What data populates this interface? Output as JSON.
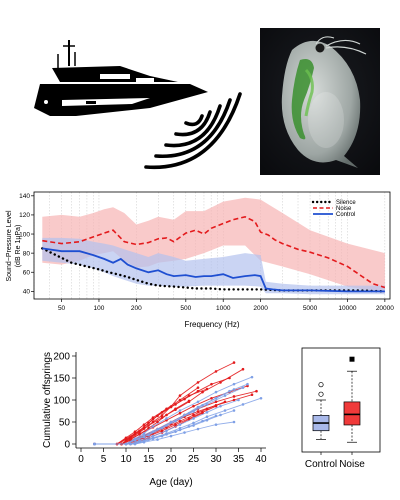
{
  "figure": {
    "boat_icon": "motor-yacht-icon",
    "sound_icon": "sound-waves-icon",
    "photo_subject": "daphnia-photo",
    "colors": {
      "silence": "#000000",
      "noise": "#e31a1c",
      "control": "#1f4fd1",
      "noise_band": "#f6b3b3",
      "control_band": "#b3c2ee"
    }
  },
  "chart_data": [
    {
      "type": "line",
      "xlabel": "Frequency (Hz)",
      "ylabel": "Sound−Pressure Level",
      "ylabel2": "(dB Re 1μPa)",
      "xscale": "log",
      "xlim": [
        30,
        22000
      ],
      "ylim": [
        32,
        144
      ],
      "xticks": [
        50,
        100,
        200,
        500,
        1000,
        2000,
        5000,
        10000,
        20000
      ],
      "xtick_labels": [
        "50",
        "100",
        "200",
        "500",
        "1000",
        "2000",
        "5000",
        "10000",
        "20000"
      ],
      "yticks": [
        40,
        60,
        80,
        100,
        120,
        140
      ],
      "legend": [
        "Silence",
        "Noise",
        "Control"
      ],
      "legend_position": "top-right",
      "series": [
        {
          "name": "Silence",
          "style": "dotted",
          "x": [
            35,
            45,
            60,
            80,
            100,
            120,
            140,
            160,
            180,
            200,
            250,
            300,
            400,
            500,
            600,
            800,
            1000,
            1200,
            1500,
            2000,
            3000,
            5000,
            8000,
            12000,
            20000
          ],
          "y": [
            85,
            78,
            70,
            66,
            63,
            60,
            58,
            56,
            54,
            52,
            48,
            46,
            45,
            44,
            43,
            43,
            42,
            42,
            42,
            42,
            41,
            41,
            41,
            41,
            40
          ]
        },
        {
          "name": "Noise",
          "style": "dashed",
          "x": [
            35,
            50,
            70,
            90,
            110,
            130,
            160,
            200,
            250,
            300,
            350,
            400,
            500,
            600,
            700,
            800,
            1000,
            1200,
            1500,
            1800,
            2000,
            2300,
            2600,
            3000,
            4000,
            5000,
            7000,
            10000,
            13000,
            16000,
            20000
          ],
          "y": [
            93,
            90,
            92,
            97,
            101,
            104,
            92,
            89,
            91,
            95,
            96,
            92,
            101,
            104,
            100,
            106,
            111,
            115,
            118,
            113,
            102,
            99,
            94,
            90,
            84,
            81,
            75,
            66,
            56,
            48,
            44
          ]
        },
        {
          "name": "Control",
          "style": "solid",
          "x": [
            35,
            50,
            70,
            90,
            110,
            130,
            150,
            170,
            200,
            250,
            300,
            350,
            400,
            500,
            600,
            700,
            800,
            1000,
            1200,
            1500,
            1800,
            2000,
            2200,
            2500,
            3000,
            5000,
            10000,
            20000
          ],
          "y": [
            85,
            82,
            82,
            78,
            74,
            70,
            74,
            68,
            64,
            60,
            62,
            58,
            56,
            57,
            55,
            56,
            56,
            58,
            54,
            56,
            57,
            56,
            43,
            42,
            41,
            41,
            40,
            40
          ]
        }
      ],
      "bands": [
        {
          "name": "Noise",
          "x": [
            35,
            50,
            70,
            90,
            110,
            130,
            160,
            200,
            250,
            300,
            400,
            500,
            700,
            1000,
            1500,
            2000,
            3000,
            5000,
            10000,
            20000
          ],
          "low": [
            70,
            68,
            72,
            78,
            80,
            82,
            72,
            65,
            66,
            70,
            72,
            74,
            80,
            88,
            88,
            72,
            66,
            58,
            45,
            38
          ],
          "high": [
            118,
            120,
            118,
            122,
            126,
            128,
            122,
            110,
            114,
            118,
            115,
            124,
            124,
            134,
            138,
            136,
            122,
            104,
            90,
            80
          ]
        },
        {
          "name": "Control",
          "x": [
            35,
            50,
            70,
            90,
            110,
            130,
            160,
            200,
            250,
            300,
            400,
            500,
            700,
            1000,
            1500,
            2000,
            2200,
            3000,
            5000,
            10000,
            20000
          ],
          "low": [
            72,
            70,
            68,
            64,
            60,
            56,
            52,
            48,
            46,
            46,
            45,
            45,
            46,
            46,
            46,
            45,
            38,
            38,
            37,
            37,
            37
          ],
          "high": [
            96,
            96,
            95,
            92,
            90,
            88,
            84,
            80,
            76,
            80,
            76,
            72,
            74,
            76,
            80,
            78,
            50,
            48,
            46,
            46,
            46
          ]
        }
      ]
    },
    {
      "type": "line",
      "xlabel": "Age (day)",
      "ylabel": "Cumulative offsprings",
      "xlim": [
        0,
        40
      ],
      "ylim": [
        0,
        200
      ],
      "xticks": [
        0,
        5,
        10,
        15,
        20,
        25,
        30,
        35,
        40
      ],
      "yticks": [
        0,
        50,
        100,
        150,
        200
      ],
      "series": [
        {
          "group": "Noise",
          "x": [
            3,
            8,
            10,
            12,
            14,
            16,
            18,
            20,
            22,
            26,
            30,
            34
          ],
          "y": [
            0,
            0,
            10,
            22,
            35,
            50,
            65,
            85,
            110,
            140,
            165,
            185
          ]
        },
        {
          "group": "Noise",
          "x": [
            3,
            9,
            11,
            13,
            15,
            18,
            21,
            24,
            27,
            31,
            36
          ],
          "y": [
            0,
            0,
            14,
            26,
            42,
            60,
            78,
            96,
            118,
            140,
            170
          ]
        },
        {
          "group": "Noise",
          "x": [
            3,
            8,
            10,
            12,
            14,
            16,
            18,
            21,
            24,
            28
          ],
          "y": [
            0,
            0,
            12,
            24,
            38,
            56,
            72,
            90,
            110,
            125
          ]
        },
        {
          "group": "Noise",
          "x": [
            3,
            9,
            11,
            14,
            17,
            20,
            23,
            26,
            30,
            34,
            39
          ],
          "y": [
            0,
            0,
            8,
            20,
            34,
            50,
            66,
            80,
            96,
            108,
            120
          ]
        },
        {
          "group": "Noise",
          "x": [
            3,
            10,
            12,
            14,
            17,
            20,
            23,
            26,
            30,
            34,
            38
          ],
          "y": [
            0,
            0,
            10,
            18,
            32,
            46,
            62,
            74,
            88,
            100,
            112
          ]
        },
        {
          "group": "Noise",
          "x": [
            3,
            9,
            11,
            13,
            15,
            17,
            20,
            23,
            26,
            29,
            33
          ],
          "y": [
            0,
            0,
            16,
            30,
            48,
            64,
            84,
            102,
            120,
            136,
            150
          ]
        },
        {
          "group": "Noise",
          "x": [
            3,
            10,
            12,
            15,
            18,
            21,
            24,
            27,
            30
          ],
          "y": [
            0,
            0,
            8,
            18,
            30,
            44,
            58,
            72,
            86
          ]
        },
        {
          "group": "Noise",
          "x": [
            3,
            8,
            10,
            12,
            14,
            16,
            19,
            22,
            26
          ],
          "y": [
            0,
            0,
            14,
            28,
            44,
            60,
            80,
            100,
            128
          ]
        },
        {
          "group": "Noise",
          "x": [
            3,
            10,
            12,
            14,
            16,
            19,
            22,
            25,
            28,
            32
          ],
          "y": [
            0,
            0,
            6,
            14,
            24,
            38,
            52,
            66,
            80,
            96
          ]
        },
        {
          "group": "Noise",
          "x": [
            3,
            9,
            11,
            13,
            16,
            19,
            22,
            25,
            29,
            33,
            37
          ],
          "y": [
            0,
            0,
            12,
            22,
            38,
            54,
            70,
            86,
            104,
            118,
            132
          ]
        },
        {
          "group": "Noise",
          "x": [
            3,
            11,
            13,
            15,
            18,
            21,
            24,
            27
          ],
          "y": [
            0,
            0,
            6,
            14,
            26,
            40,
            56,
            70
          ]
        },
        {
          "group": "Noise",
          "x": [
            3,
            9,
            11,
            13,
            15,
            17,
            19,
            21,
            24
          ],
          "y": [
            0,
            0,
            10,
            22,
            36,
            50,
            66,
            80,
            98
          ]
        },
        {
          "group": "Control",
          "x": [
            3,
            10,
            12,
            14,
            16,
            19,
            22,
            25,
            28,
            32,
            36
          ],
          "y": [
            0,
            0,
            8,
            16,
            28,
            42,
            58,
            74,
            90,
            110,
            128
          ]
        },
        {
          "group": "Control",
          "x": [
            3,
            11,
            13,
            16,
            19,
            22,
            25,
            28,
            32,
            36,
            40
          ],
          "y": [
            0,
            0,
            6,
            14,
            24,
            36,
            48,
            62,
            76,
            90,
            104
          ]
        },
        {
          "group": "Control",
          "x": [
            3,
            10,
            12,
            14,
            17,
            20,
            23,
            26,
            30,
            34
          ],
          "y": [
            0,
            0,
            10,
            20,
            34,
            50,
            66,
            84,
            104,
            124
          ]
        },
        {
          "group": "Control",
          "x": [
            3,
            11,
            13,
            15,
            18,
            21,
            24,
            27,
            30
          ],
          "y": [
            0,
            0,
            4,
            10,
            18,
            28,
            40,
            52,
            64
          ]
        },
        {
          "group": "Control",
          "x": [
            3,
            12,
            14,
            17,
            20,
            23,
            26,
            30,
            34
          ],
          "y": [
            0,
            0,
            4,
            10,
            18,
            26,
            34,
            44,
            50
          ]
        },
        {
          "group": "Control",
          "x": [
            3,
            10,
            12,
            14,
            16,
            19,
            22,
            26,
            30,
            34,
            38
          ],
          "y": [
            0,
            0,
            12,
            24,
            40,
            58,
            76,
            96,
            118,
            136,
            152
          ]
        },
        {
          "group": "Control",
          "x": [
            3,
            11,
            13,
            16,
            19,
            22,
            25,
            28,
            31,
            35
          ],
          "y": [
            0,
            0,
            8,
            18,
            30,
            44,
            58,
            72,
            86,
            100
          ]
        },
        {
          "group": "Control",
          "x": [
            3,
            12,
            14,
            16,
            19,
            22,
            25,
            28,
            31,
            34
          ],
          "y": [
            0,
            0,
            6,
            12,
            22,
            32,
            42,
            54,
            66,
            76
          ]
        },
        {
          "group": "Control",
          "x": [
            3,
            10,
            12,
            15,
            18,
            21,
            24,
            27,
            30,
            33,
            37
          ],
          "y": [
            0,
            0,
            10,
            20,
            36,
            52,
            70,
            88,
            104,
            120,
            136
          ]
        }
      ]
    },
    {
      "type": "box",
      "categories": [
        "Control",
        "Noise"
      ],
      "ylim": [
        0,
        200
      ],
      "boxes": [
        {
          "name": "Control",
          "min": 18,
          "q1": 36,
          "median": 52,
          "q3": 68,
          "max": 100,
          "outliers": [
            112,
            132
          ]
        },
        {
          "name": "Noise",
          "min": 12,
          "q1": 48,
          "median": 70,
          "q3": 96,
          "max": 160,
          "outliers": [
            185
          ]
        }
      ]
    }
  ]
}
